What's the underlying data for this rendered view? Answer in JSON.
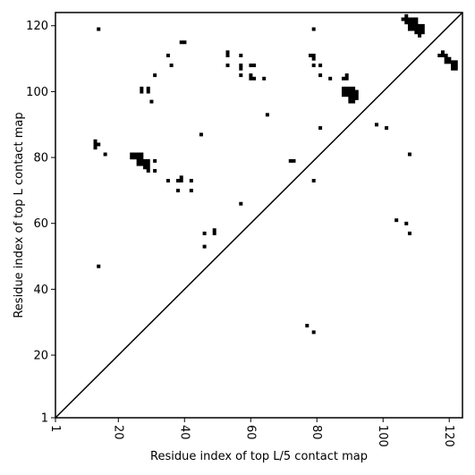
{
  "chart_data": {
    "type": "scatter",
    "title": "",
    "xlabel": "Residue index of top L/5 contact map",
    "ylabel": "Residue index of top L contact map",
    "xlim": [
      1,
      124
    ],
    "ylim": [
      1,
      124
    ],
    "xticks": [
      1,
      20,
      40,
      60,
      80,
      100,
      120
    ],
    "yticks": [
      1,
      20,
      40,
      60,
      80,
      100,
      120
    ],
    "xtick_labels": [
      "1",
      "20",
      "40",
      "60",
      "80",
      "100",
      "120"
    ],
    "ytick_labels": [
      "1",
      "20",
      "40",
      "60",
      "80",
      "100",
      "120"
    ],
    "diagonal": true,
    "grid": false,
    "marker_color": "#000000",
    "points": [
      [
        14,
        119
      ],
      [
        39,
        115
      ],
      [
        40,
        115
      ],
      [
        53,
        112
      ],
      [
        53,
        111
      ],
      [
        57,
        111
      ],
      [
        35,
        111
      ],
      [
        36,
        108
      ],
      [
        53,
        108
      ],
      [
        57,
        108
      ],
      [
        57,
        107
      ],
      [
        57,
        105
      ],
      [
        60,
        108
      ],
      [
        61,
        108
      ],
      [
        60,
        105
      ],
      [
        60,
        104
      ],
      [
        61,
        104
      ],
      [
        64,
        104
      ],
      [
        31,
        105
      ],
      [
        27,
        101
      ],
      [
        27,
        100
      ],
      [
        29,
        101
      ],
      [
        29,
        100
      ],
      [
        30,
        97
      ],
      [
        65,
        93
      ],
      [
        45,
        87
      ],
      [
        13,
        85
      ],
      [
        13,
        84
      ],
      [
        14,
        84
      ],
      [
        13,
        83
      ],
      [
        16,
        81
      ],
      [
        24,
        81
      ],
      [
        25,
        81
      ],
      [
        26,
        81
      ],
      [
        27,
        81
      ],
      [
        24,
        80
      ],
      [
        25,
        80
      ],
      [
        26,
        80
      ],
      [
        27,
        80
      ],
      [
        26,
        79
      ],
      [
        27,
        79
      ],
      [
        28,
        79
      ],
      [
        29,
        79
      ],
      [
        26,
        78
      ],
      [
        27,
        78
      ],
      [
        28,
        78
      ],
      [
        29,
        78
      ],
      [
        28,
        77
      ],
      [
        29,
        77
      ],
      [
        29,
        76
      ],
      [
        31,
        79
      ],
      [
        31,
        76
      ],
      [
        35,
        73
      ],
      [
        38,
        73
      ],
      [
        39,
        74
      ],
      [
        39,
        73
      ],
      [
        42,
        73
      ],
      [
        38,
        70
      ],
      [
        42,
        70
      ],
      [
        57,
        66
      ],
      [
        46,
        57
      ],
      [
        49,
        58
      ],
      [
        49,
        57
      ],
      [
        46,
        53
      ],
      [
        14,
        47
      ],
      [
        72,
        79
      ],
      [
        73,
        79
      ],
      [
        79,
        73
      ],
      [
        79,
        119
      ],
      [
        78,
        111
      ],
      [
        79,
        111
      ],
      [
        79,
        110
      ],
      [
        79,
        108
      ],
      [
        81,
        108
      ],
      [
        81,
        105
      ],
      [
        84,
        104
      ],
      [
        88,
        104
      ],
      [
        89,
        105
      ],
      [
        89,
        104
      ],
      [
        88,
        101
      ],
      [
        89,
        101
      ],
      [
        90,
        101
      ],
      [
        91,
        101
      ],
      [
        88,
        100
      ],
      [
        89,
        100
      ],
      [
        90,
        100
      ],
      [
        91,
        100
      ],
      [
        92,
        100
      ],
      [
        88,
        99
      ],
      [
        89,
        99
      ],
      [
        90,
        99
      ],
      [
        91,
        99
      ],
      [
        92,
        99
      ],
      [
        90,
        98
      ],
      [
        91,
        98
      ],
      [
        92,
        98
      ],
      [
        90,
        97
      ],
      [
        91,
        97
      ],
      [
        81,
        89
      ],
      [
        98,
        90
      ],
      [
        101,
        89
      ],
      [
        77,
        29
      ],
      [
        79,
        27
      ],
      [
        104,
        61
      ],
      [
        107,
        60
      ],
      [
        108,
        57
      ],
      [
        108,
        81
      ],
      [
        106,
        122
      ],
      [
        107,
        122
      ],
      [
        108,
        122
      ],
      [
        109,
        122
      ],
      [
        110,
        122
      ],
      [
        107,
        123
      ],
      [
        107,
        121
      ],
      [
        108,
        121
      ],
      [
        109,
        121
      ],
      [
        110,
        121
      ],
      [
        108,
        120
      ],
      [
        109,
        120
      ],
      [
        110,
        120
      ],
      [
        111,
        120
      ],
      [
        112,
        120
      ],
      [
        108,
        119
      ],
      [
        109,
        119
      ],
      [
        110,
        119
      ],
      [
        111,
        119
      ],
      [
        112,
        119
      ],
      [
        110,
        118
      ],
      [
        111,
        118
      ],
      [
        112,
        118
      ],
      [
        111,
        117
      ],
      [
        117,
        111
      ],
      [
        118,
        111
      ],
      [
        118,
        112
      ],
      [
        119,
        111
      ],
      [
        119,
        110
      ],
      [
        120,
        110
      ],
      [
        119,
        109
      ],
      [
        120,
        109
      ],
      [
        121,
        109
      ],
      [
        122,
        109
      ],
      [
        121,
        108
      ],
      [
        122,
        108
      ],
      [
        121,
        107
      ],
      [
        122,
        107
      ]
    ]
  }
}
